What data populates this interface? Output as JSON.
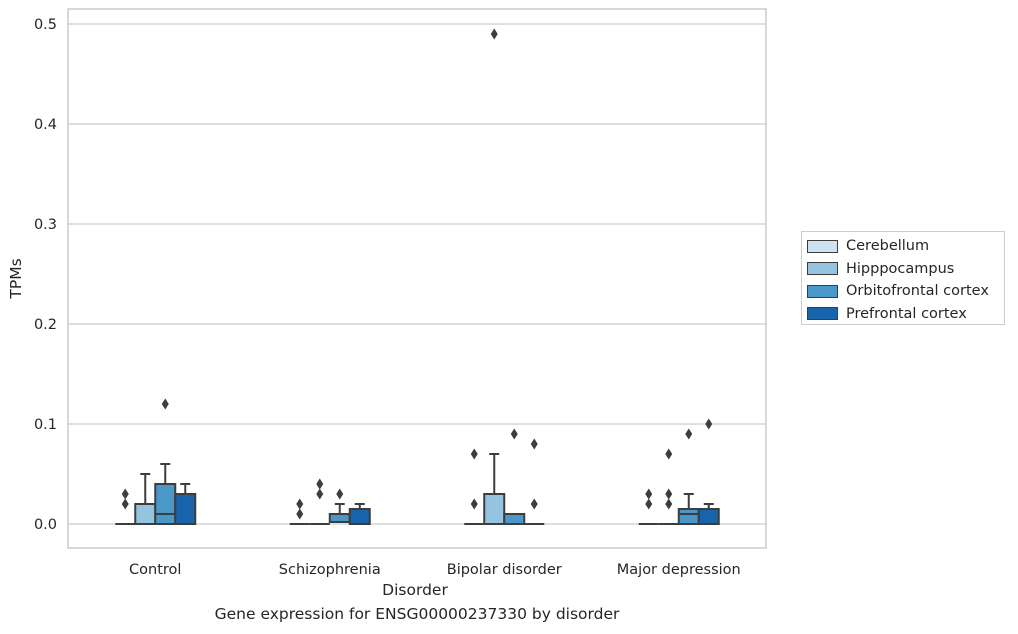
{
  "caption": "Gene expression for ENSG00000237330 by disorder",
  "colors": {
    "Cerebellum": "#d0e1f2",
    "Hipppocampus": "#94c4df",
    "Orbitofrontal cortex": "#4a98c9",
    "Prefrontal cortex": "#1764ab"
  },
  "chart_data": {
    "type": "box",
    "xlabel": "Disorder",
    "ylabel": "TPMs",
    "ylim": [
      -0.024,
      0.515
    ],
    "yticks": [
      "0.0",
      "0.1",
      "0.2",
      "0.3",
      "0.4",
      "0.5"
    ],
    "grid": true,
    "legend_position": "right",
    "categories": [
      "Control",
      "Schizophrenia",
      "Bipolar disorder",
      "Major depression"
    ],
    "series": [
      {
        "name": "Cerebellum",
        "boxes": [
          {
            "q1": 0,
            "median": 0,
            "q3": 0,
            "whisker_low": 0,
            "whisker_high": 0,
            "outliers": [
              0.02,
              0.03
            ]
          },
          {
            "q1": 0,
            "median": 0,
            "q3": 0,
            "whisker_low": 0,
            "whisker_high": 0,
            "outliers": [
              0.01,
              0.02
            ]
          },
          {
            "q1": 0,
            "median": 0,
            "q3": 0,
            "whisker_low": 0,
            "whisker_high": 0,
            "outliers": [
              0.02,
              0.07
            ]
          },
          {
            "q1": 0,
            "median": 0,
            "q3": 0,
            "whisker_low": 0,
            "whisker_high": 0,
            "outliers": [
              0.02,
              0.03
            ]
          }
        ]
      },
      {
        "name": "Hipppocampus",
        "boxes": [
          {
            "q1": 0,
            "median": 0,
            "q3": 0.02,
            "whisker_low": 0,
            "whisker_high": 0.05,
            "outliers": []
          },
          {
            "q1": 0,
            "median": 0,
            "q3": 0,
            "whisker_low": 0,
            "whisker_high": 0,
            "outliers": [
              0.03,
              0.04
            ]
          },
          {
            "q1": 0,
            "median": 0,
            "q3": 0.03,
            "whisker_low": 0,
            "whisker_high": 0.07,
            "outliers": [
              0.49
            ]
          },
          {
            "q1": 0,
            "median": 0,
            "q3": 0,
            "whisker_low": 0,
            "whisker_high": 0,
            "outliers": [
              0.02,
              0.03,
              0.07
            ]
          }
        ]
      },
      {
        "name": "Orbitofrontal cortex",
        "boxes": [
          {
            "q1": 0,
            "median": 0.01,
            "q3": 0.04,
            "whisker_low": 0,
            "whisker_high": 0.06,
            "outliers": [
              0.12
            ]
          },
          {
            "q1": 0.002,
            "median": 0.002,
            "q3": 0.01,
            "whisker_low": 0.002,
            "whisker_high": 0.02,
            "outliers": [
              0.03
            ]
          },
          {
            "q1": 0,
            "median": 0.01,
            "q3": 0.01,
            "whisker_low": 0,
            "whisker_high": 0.01,
            "outliers": [
              0.09
            ]
          },
          {
            "q1": 0,
            "median": 0.01,
            "q3": 0.015,
            "whisker_low": 0,
            "whisker_high": 0.03,
            "outliers": [
              0.09
            ]
          }
        ]
      },
      {
        "name": "Prefrontal cortex",
        "boxes": [
          {
            "q1": 0,
            "median": 0,
            "q3": 0.03,
            "whisker_low": 0,
            "whisker_high": 0.04,
            "outliers": []
          },
          {
            "q1": 0,
            "median": 0,
            "q3": 0.015,
            "whisker_low": 0,
            "whisker_high": 0.02,
            "outliers": []
          },
          {
            "q1": 0,
            "median": 0,
            "q3": 0,
            "whisker_low": 0,
            "whisker_high": 0,
            "outliers": [
              0.02,
              0.08
            ]
          },
          {
            "q1": 0,
            "median": 0,
            "q3": 0.015,
            "whisker_low": 0,
            "whisker_high": 0.02,
            "outliers": [
              0.1
            ]
          }
        ]
      }
    ]
  }
}
